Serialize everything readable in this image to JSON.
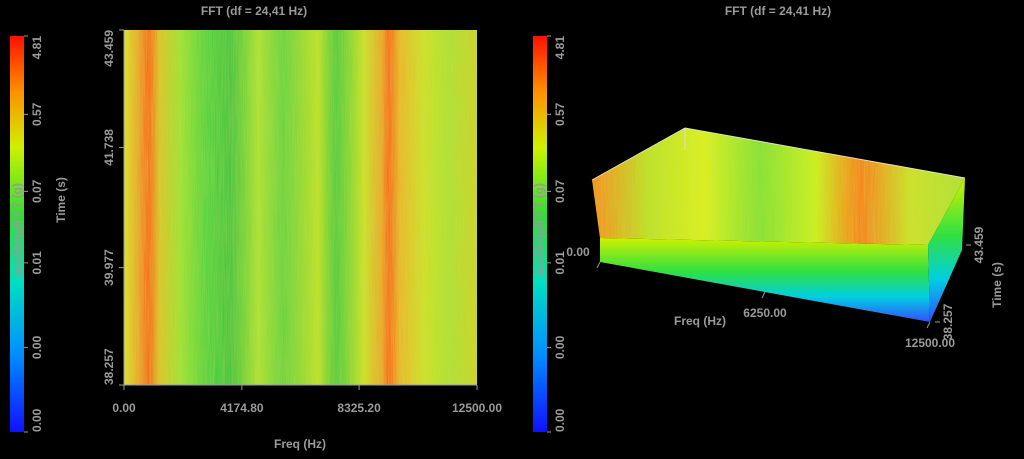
{
  "chart_data": [
    {
      "type": "heatmap",
      "title": "FFT (df = 24,41 Hz)",
      "xlabel": "Freq (Hz)",
      "ylabel": "Time (s)",
      "colorbar_label": "acc/AmplFFT (g)",
      "xlim": [
        0,
        12500
      ],
      "xticks": [
        {
          "value": 0,
          "label": "0.00"
        },
        {
          "value": 4174.8,
          "label": "4174.80"
        },
        {
          "value": 8325.2,
          "label": "8325.20"
        },
        {
          "value": 12500,
          "label": "12500.00"
        }
      ],
      "ylim": [
        38.257,
        43.459
      ],
      "yticks": [
        38.257,
        39.977,
        41.738,
        43.459
      ],
      "clim": [
        0.0001,
        4.81
      ],
      "color_scale": "log",
      "cticks": [
        {
          "value": 0.0001,
          "label": "0.00"
        },
        {
          "value": 0.001,
          "label": "0.00"
        },
        0.01,
        0.07,
        0.57,
        4.81
      ]
    },
    {
      "type": "surface3d",
      "title": "FFT (df = 24,41 Hz)",
      "xlabel": "Freq (Hz)",
      "ylabel": "Time (s)",
      "colorbar_label": "acc/AmplFFT (g)",
      "xlim": [
        0,
        12500
      ],
      "xticks": [
        {
          "value": 0,
          "label": "0.00"
        },
        {
          "value": 6250,
          "label": "6250.00"
        },
        {
          "value": 12500,
          "label": "12500.00"
        }
      ],
      "ylim": [
        38.257,
        43.459
      ],
      "yticks": [
        38.257,
        43.459
      ],
      "clim": [
        0.0001,
        4.81
      ],
      "color_scale": "log",
      "cticks": [
        {
          "value": 0.0001,
          "label": "0.00"
        },
        {
          "value": 0.001,
          "label": "0.00"
        },
        0.01,
        0.07,
        0.57,
        4.81
      ]
    }
  ]
}
